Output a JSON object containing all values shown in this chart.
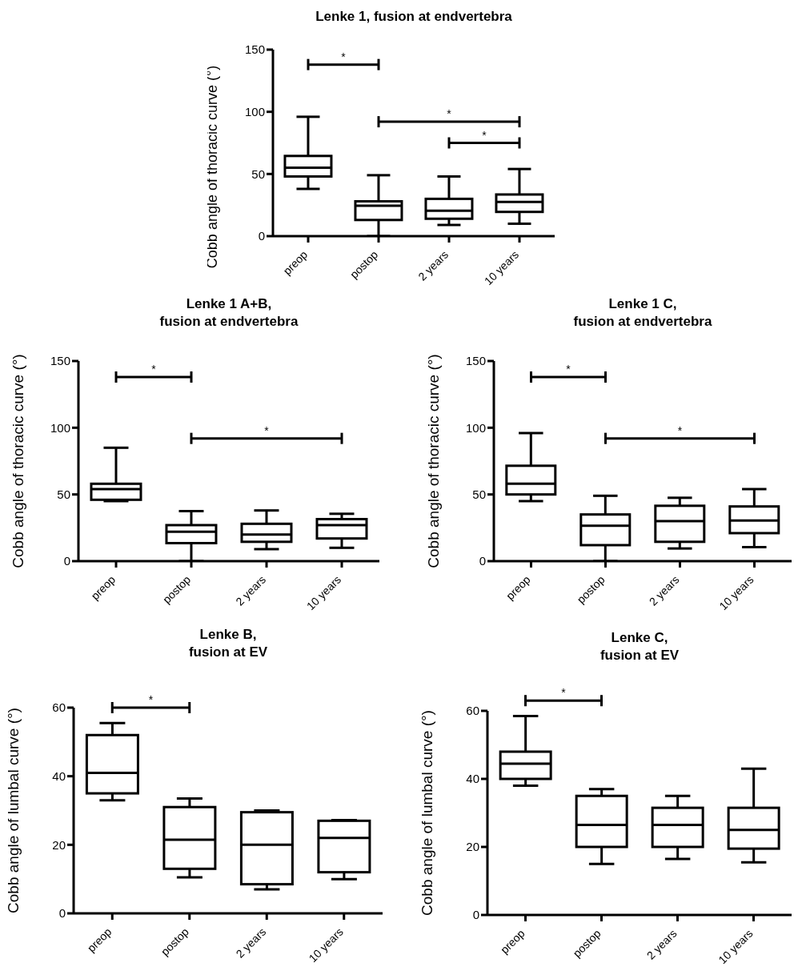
{
  "chart_data": [
    {
      "type": "box",
      "title": "Lenke 1, fusion at endvertebra",
      "ylabel": "Cobb angle of thoracic curve (°)",
      "categories": [
        "preop",
        "postop",
        "2 years",
        "10 years"
      ],
      "boxes": [
        {
          "low": 38,
          "q1": 48,
          "median": 55,
          "q3": 64.5,
          "high": 96
        },
        {
          "low": 0,
          "q1": 13,
          "median": 24.5,
          "q3": 28,
          "high": 49
        },
        {
          "low": 9,
          "q1": 14,
          "median": 20.5,
          "q3": 30,
          "high": 48
        },
        {
          "low": 10,
          "q1": 19.5,
          "median": 27.5,
          "q3": 33.5,
          "high": 54
        }
      ],
      "ylim": [
        0,
        150
      ],
      "yticks": [
        0,
        50,
        100,
        150
      ],
      "annotations": [
        "*",
        "*",
        "*"
      ]
    },
    {
      "type": "box",
      "title": "Lenke 1 A+B,\nfusion at endvertebra",
      "ylabel": "Cobb angle of thoracic curve (°)",
      "categories": [
        "preop",
        "postop",
        "2 years",
        "10 years"
      ],
      "boxes": [
        {
          "low": 45,
          "q1": 46,
          "median": 54,
          "q3": 58,
          "high": 85
        },
        {
          "low": 0,
          "q1": 13.5,
          "median": 22,
          "q3": 27,
          "high": 37.5
        },
        {
          "low": 9,
          "q1": 14.5,
          "median": 20,
          "q3": 28,
          "high": 38
        },
        {
          "low": 10,
          "q1": 17,
          "median": 27,
          "q3": 31.5,
          "high": 35.5
        }
      ],
      "ylim": [
        0,
        150
      ],
      "yticks": [
        0,
        50,
        100,
        150
      ],
      "annotations": [
        "*",
        "*"
      ]
    },
    {
      "type": "box",
      "title": "Lenke 1 C,\nfusion at endvertebra",
      "ylabel": "Cobb angle of thoracic curve (°)",
      "categories": [
        "preop",
        "postop",
        "2 years",
        "10 years"
      ],
      "boxes": [
        {
          "low": 45,
          "q1": 50,
          "median": 58,
          "q3": 71.5,
          "high": 96
        },
        {
          "low": 0,
          "q1": 12,
          "median": 26.5,
          "q3": 35,
          "high": 49
        },
        {
          "low": 9.5,
          "q1": 14.5,
          "median": 30,
          "q3": 41.5,
          "high": 47.5
        },
        {
          "low": 10.5,
          "q1": 21,
          "median": 30.5,
          "q3": 41,
          "high": 54
        }
      ],
      "ylim": [
        0,
        150
      ],
      "yticks": [
        0,
        50,
        100,
        150
      ],
      "annotations": [
        "*",
        "*"
      ]
    },
    {
      "type": "box",
      "title": "Lenke B,\nfusion at EV",
      "ylabel": "Cobb angle of lumbal curve (°)",
      "categories": [
        "preop",
        "postop",
        "2 years",
        "10 years"
      ],
      "boxes": [
        {
          "low": 33,
          "q1": 35,
          "median": 41,
          "q3": 52,
          "high": 55.5
        },
        {
          "low": 10.5,
          "q1": 13,
          "median": 21.5,
          "q3": 31,
          "high": 33.5
        },
        {
          "low": 7,
          "q1": 8.5,
          "median": 20,
          "q3": 29.5,
          "high": 30
        },
        {
          "low": 10,
          "q1": 12,
          "median": 22,
          "q3": 27,
          "high": 27.2
        }
      ],
      "ylim": [
        0,
        60
      ],
      "yticks": [
        0,
        20,
        40,
        60
      ],
      "annotations": [
        "*"
      ]
    },
    {
      "type": "box",
      "title": "Lenke C,\nfusion at EV",
      "ylabel": "Cobb angle of lumbal curve (°)",
      "categories": [
        "preop",
        "postop",
        "2 years",
        "10 years"
      ],
      "boxes": [
        {
          "low": 38,
          "q1": 40,
          "median": 44.5,
          "q3": 48,
          "high": 58.5
        },
        {
          "low": 15,
          "q1": 20,
          "median": 26.5,
          "q3": 35,
          "high": 37
        },
        {
          "low": 16.5,
          "q1": 20,
          "median": 26.5,
          "q3": 31.5,
          "high": 35
        },
        {
          "low": 15.5,
          "q1": 19.5,
          "median": 25,
          "q3": 31.5,
          "high": 43
        }
      ],
      "ylim": [
        0,
        60
      ],
      "yticks": [
        0,
        20,
        40,
        60
      ],
      "annotations": [
        "*"
      ]
    }
  ]
}
